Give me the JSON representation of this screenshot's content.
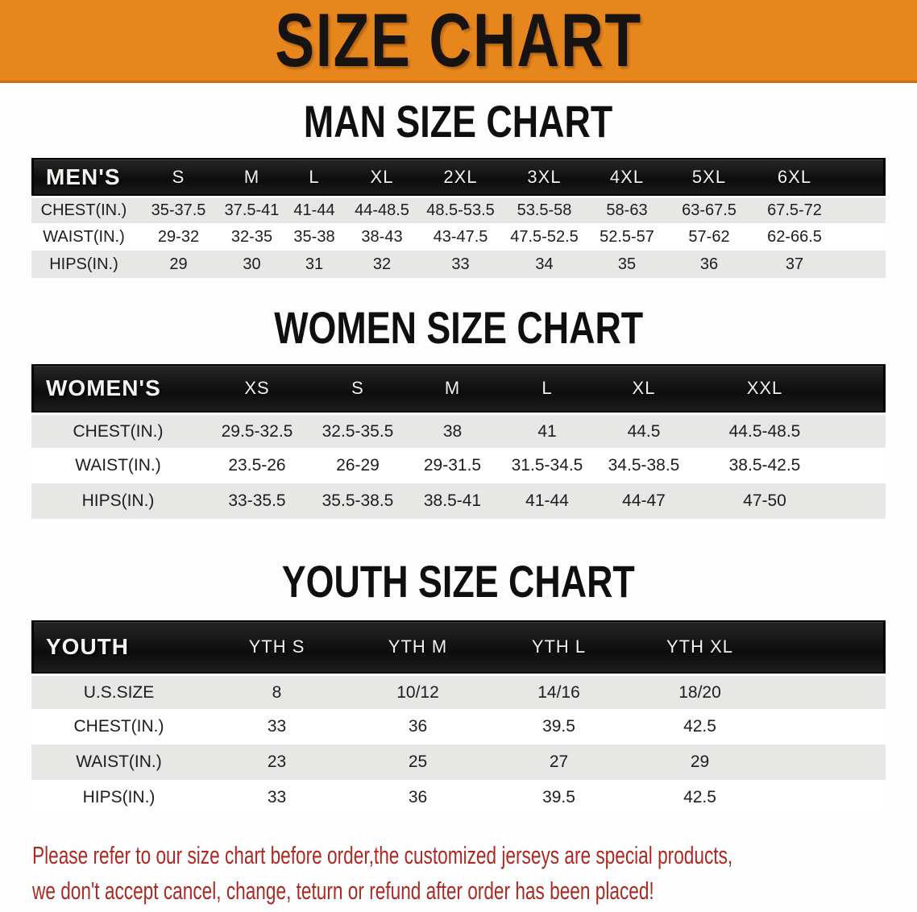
{
  "banner": {
    "title": "SIZE CHART",
    "bg_color": "#e8861e"
  },
  "sections": [
    {
      "id": "men",
      "title": "MAN SIZE CHART",
      "header_label": "MEN'S",
      "columns": [
        "S",
        "M",
        "L",
        "XL",
        "2XL",
        "3XL",
        "4XL",
        "5XL",
        "6XL"
      ],
      "rows": [
        {
          "label": "CHEST(IN.)",
          "values": [
            "35-37.5",
            "37.5-41",
            "41-44",
            "44-48.5",
            "48.5-53.5",
            "53.5-58",
            "58-63",
            "63-67.5",
            "67.5-72"
          ]
        },
        {
          "label": "WAIST(IN.)",
          "values": [
            "29-32",
            "32-35",
            "35-38",
            "38-43",
            "43-47.5",
            "47.5-52.5",
            "52.5-57",
            "57-62",
            "62-66.5"
          ]
        },
        {
          "label": "HIPS(IN.)",
          "values": [
            "29",
            "30",
            "31",
            "32",
            "33",
            "34",
            "35",
            "36",
            "37"
          ]
        }
      ]
    },
    {
      "id": "women",
      "title": "WOMEN SIZE CHART",
      "header_label": "WOMEN'S",
      "columns": [
        "XS",
        "S",
        "M",
        "L",
        "XL",
        "XXL"
      ],
      "rows": [
        {
          "label": "CHEST(IN.)",
          "values": [
            "29.5-32.5",
            "32.5-35.5",
            "38",
            "41",
            "44.5",
            "44.5-48.5"
          ]
        },
        {
          "label": "WAIST(IN.)",
          "values": [
            "23.5-26",
            "26-29",
            "29-31.5",
            "31.5-34.5",
            "34.5-38.5",
            "38.5-42.5"
          ]
        },
        {
          "label": "HIPS(IN.)",
          "values": [
            "33-35.5",
            "35.5-38.5",
            "38.5-41",
            "41-44",
            "44-47",
            "47-50"
          ]
        }
      ]
    },
    {
      "id": "youth",
      "title": "YOUTH SIZE CHART",
      "header_label": "YOUTH",
      "columns": [
        "YTH S",
        "YTH M",
        "YTH L",
        "YTH XL"
      ],
      "rows": [
        {
          "label": "U.S.SIZE",
          "values": [
            "8",
            "10/12",
            "14/16",
            "18/20"
          ]
        },
        {
          "label": "CHEST(IN.)",
          "values": [
            "33",
            "36",
            "39.5",
            "42.5"
          ]
        },
        {
          "label": "WAIST(IN.)",
          "values": [
            "23",
            "25",
            "27",
            "29"
          ]
        },
        {
          "label": "HIPS(IN.)",
          "values": [
            "33",
            "36",
            "39.5",
            "42.5"
          ]
        }
      ]
    }
  ],
  "disclaimer": {
    "color": "#ab2a23",
    "lines": [
      "Please refer to our size chart before order,the customized jerseys are special products,",
      "we don't accept cancel, change, teturn or refund after order has been placed!"
    ]
  }
}
